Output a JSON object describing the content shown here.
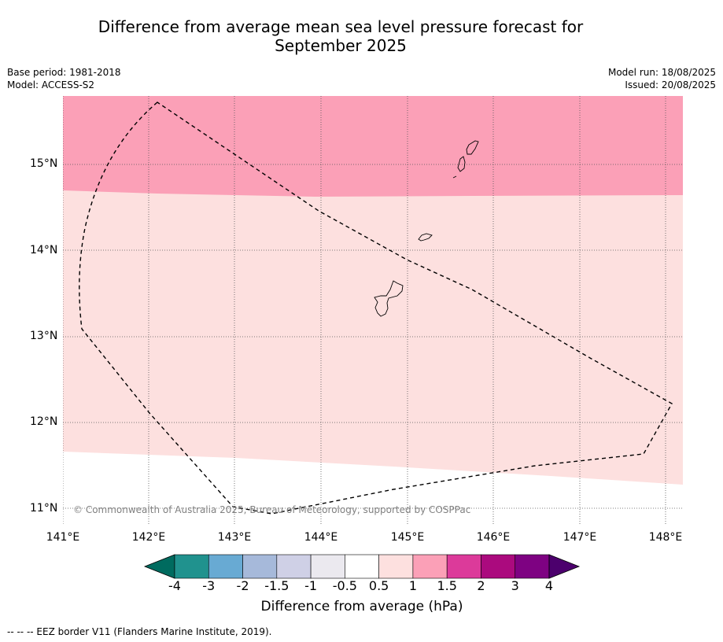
{
  "title": {
    "line1": "Difference from average mean sea level pressure forecast for",
    "line2": "September 2025"
  },
  "meta": {
    "base_period": "Base period: 1981-2018",
    "model": "Model: ACCESS-S2",
    "model_run": "Model run: 18/08/2025",
    "issued": "Issued: 20/08/2025"
  },
  "map": {
    "lon_labels": [
      "141°E",
      "142°E",
      "143°E",
      "144°E",
      "145°E",
      "146°E",
      "147°E",
      "148°E"
    ],
    "lat_labels": [
      "15°N",
      "14°N",
      "13°N",
      "12°N",
      "11°N"
    ],
    "copyright": "© Commonwealth of Australia 2025, Bureau of Meteorology, supported by COSPPac",
    "colors": {
      "anomaly_1_to_1_5": "#fba0b7",
      "anomaly_0_5_to_1": "#fde0df",
      "anomaly_minus_0_5_to_0_5": "#ffffff",
      "eez_border": "#000000"
    }
  },
  "colorbar": {
    "labels": [
      "-4",
      "-3",
      "-2",
      "-1.5",
      "-1",
      "-0.5",
      "0.5",
      "1",
      "1.5",
      "2",
      "3",
      "4"
    ],
    "colors": [
      "#006b5f",
      "#20928e",
      "#68aad3",
      "#a6b9da",
      "#cfd0e6",
      "#ebe9ef",
      "#ffffff",
      "#fde0df",
      "#fba0b7",
      "#dc3a9a",
      "#ab0a7e",
      "#7e0282",
      "#4c006d"
    ],
    "title": "Difference from average (hPa)"
  },
  "footer": "--  --  -- EEZ border V11 (Flanders Marine Institute, 2019)."
}
